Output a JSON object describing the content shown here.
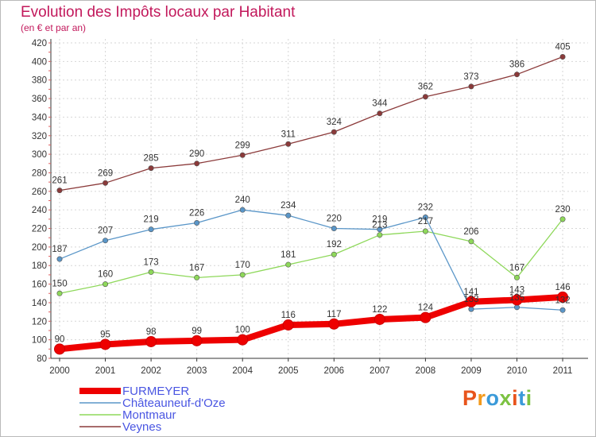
{
  "header": {
    "title": "Evolution des Impôts locaux par Habitant",
    "subtitle": "(en € et par an)"
  },
  "logo": {
    "text": "Proxiti",
    "colors": [
      "#e8541c",
      "#f39a1d",
      "#3a9ad9",
      "#7cc242",
      "#e8541c",
      "#3a9ad9",
      "#7cc242"
    ]
  },
  "chart_data": {
    "type": "line",
    "title": "Evolution des Impôts locaux par Habitant",
    "subtitle": "(en € et par an)",
    "x": [
      "2000",
      "2001",
      "2002",
      "2003",
      "2004",
      "2005",
      "2006",
      "2007",
      "2008",
      "2009",
      "2010",
      "2011"
    ],
    "ylim": [
      80,
      420
    ],
    "yticks": [
      80,
      100,
      120,
      140,
      160,
      180,
      200,
      220,
      240,
      260,
      280,
      300,
      320,
      340,
      360,
      380,
      400,
      420
    ],
    "grid": true,
    "legend_position": "bottom-left",
    "series": [
      {
        "name": "FURMEYER",
        "color": "#ee0000",
        "values": [
          90,
          95,
          98,
          99,
          100,
          116,
          117,
          122,
          124,
          141,
          143,
          146
        ]
      },
      {
        "name": "Châteauneuf-d'Oze",
        "color": "#5a96c8",
        "values": [
          187,
          207,
          219,
          226,
          240,
          234,
          220,
          219,
          232,
          133,
          135,
          132
        ]
      },
      {
        "name": "Montmaur",
        "color": "#8ed85a",
        "values": [
          150,
          160,
          173,
          167,
          170,
          181,
          192,
          213,
          217,
          206,
          167,
          230
        ]
      },
      {
        "name": "Veynes",
        "color": "#8b3a3a",
        "values": [
          261,
          269,
          285,
          290,
          299,
          311,
          324,
          344,
          362,
          373,
          386,
          405
        ]
      }
    ]
  }
}
